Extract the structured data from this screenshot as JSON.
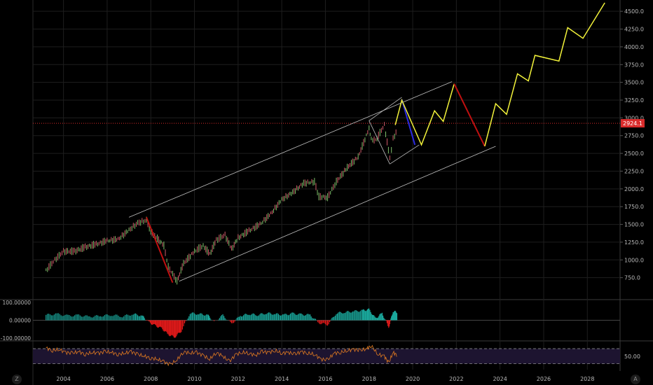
{
  "chart_data": {
    "type": "line",
    "price_axis_ticks": [
      750,
      1000,
      1250,
      1500,
      1750,
      2000,
      2250,
      2500,
      2750,
      3000,
      3250,
      3500,
      3750,
      4000,
      4250,
      4500
    ],
    "price_tick_labels": [
      "750.0",
      "1000.0",
      "1250.0",
      "1500.0",
      "1750.0",
      "2000.0",
      "2250.0",
      "2500.0",
      "2750.0",
      "3000.0",
      "3250.0",
      "3500.0",
      "3750.0",
      "4000.0",
      "4250.0",
      "4500.0"
    ],
    "ylim": [
      520,
      4620
    ],
    "xlim": [
      2002.6,
      2029.5
    ],
    "time_axis_ticks": [
      "2004",
      "2006",
      "2008",
      "2010",
      "2012",
      "2014",
      "2016",
      "2018",
      "2020",
      "2022",
      "2024",
      "2026",
      "2028"
    ],
    "current_price": 2924.1,
    "current_price_label": "2924.1",
    "price_series": {
      "x": [
        2003.2,
        2003.6,
        2004.0,
        2004.5,
        2005.0,
        2005.5,
        2006.0,
        2006.5,
        2007.0,
        2007.4,
        2007.8,
        2008.0,
        2008.3,
        2008.6,
        2008.8,
        2009.2,
        2009.5,
        2010.0,
        2010.4,
        2010.7,
        2011.0,
        2011.4,
        2011.7,
        2012.0,
        2012.5,
        2013.0,
        2013.5,
        2014.0,
        2014.5,
        2015.0,
        2015.5,
        2015.7,
        2016.1,
        2016.5,
        2017.0,
        2017.5,
        2018.0,
        2018.1,
        2018.3,
        2018.7,
        2018.95,
        2019.1,
        2019.3
      ],
      "y": [
        850,
        1000,
        1120,
        1120,
        1180,
        1220,
        1270,
        1290,
        1420,
        1520,
        1560,
        1400,
        1300,
        1200,
        900,
        700,
        950,
        1120,
        1200,
        1080,
        1280,
        1350,
        1150,
        1310,
        1410,
        1500,
        1650,
        1850,
        1950,
        2080,
        2100,
        1890,
        1880,
        2100,
        2300,
        2450,
        2850,
        2700,
        2680,
        2900,
        2420,
        2700,
        2850
      ]
    },
    "histogram_panel": {
      "labels": [
        "100.00000",
        "0.00000",
        "-100.00000"
      ],
      "ylim": [
        -100,
        100
      ],
      "x": [
        2003.2,
        2003.7,
        2004.2,
        2004.7,
        2005.2,
        2005.7,
        2006.2,
        2006.7,
        2007.2,
        2007.6,
        2007.9,
        2008.2,
        2008.5,
        2008.8,
        2009.1,
        2009.4,
        2009.8,
        2010.2,
        2010.6,
        2010.9,
        2011.3,
        2011.7,
        2012.1,
        2012.5,
        2012.9,
        2013.3,
        2013.7,
        2014.1,
        2014.5,
        2014.9,
        2015.3,
        2015.7,
        2016.1,
        2016.5,
        2016.9,
        2017.3,
        2017.7,
        2018.0,
        2018.3,
        2018.6,
        2018.9,
        2019.1,
        2019.3
      ],
      "values": [
        30,
        35,
        25,
        28,
        20,
        25,
        30,
        22,
        35,
        25,
        -10,
        -30,
        -45,
        -80,
        -95,
        -60,
        40,
        35,
        30,
        -10,
        28,
        -20,
        25,
        35,
        30,
        40,
        35,
        30,
        38,
        32,
        30,
        -15,
        -25,
        40,
        45,
        50,
        55,
        60,
        10,
        40,
        -40,
        50,
        45
      ]
    },
    "oscillator_panel": {
      "labels": [
        "50.00"
      ],
      "reference_value": 50,
      "upper_band": 70,
      "lower_band": 30,
      "ylim": [
        20,
        85
      ],
      "x": [
        2003.2,
        2003.5,
        2003.8,
        2004.1,
        2004.4,
        2004.7,
        2005.0,
        2005.3,
        2005.6,
        2005.9,
        2006.2,
        2006.5,
        2006.8,
        2007.1,
        2007.4,
        2007.7,
        2008.0,
        2008.3,
        2008.6,
        2008.9,
        2009.2,
        2009.5,
        2009.8,
        2010.1,
        2010.4,
        2010.7,
        2011.0,
        2011.3,
        2011.6,
        2011.9,
        2012.2,
        2012.5,
        2012.8,
        2013.1,
        2013.4,
        2013.7,
        2014.0,
        2014.3,
        2014.6,
        2014.9,
        2015.2,
        2015.5,
        2015.8,
        2016.1,
        2016.4,
        2016.7,
        2017.0,
        2017.3,
        2017.6,
        2017.9,
        2018.1,
        2018.4,
        2018.7,
        2018.9,
        2019.1,
        2019.3
      ],
      "values": [
        72,
        65,
        68,
        60,
        58,
        62,
        55,
        60,
        58,
        62,
        60,
        55,
        58,
        62,
        55,
        50,
        45,
        42,
        35,
        28,
        40,
        62,
        58,
        60,
        52,
        42,
        60,
        50,
        36,
        55,
        60,
        58,
        52,
        62,
        60,
        65,
        58,
        60,
        55,
        62,
        58,
        55,
        42,
        40,
        58,
        60,
        65,
        68,
        65,
        70,
        78,
        55,
        50,
        32,
        60,
        52
      ]
    },
    "drawings": {
      "channel_upper": [
        [
          2007.0,
          1600
        ],
        [
          2021.8,
          3510
        ]
      ],
      "channel_lower": [
        [
          2009.3,
          700
        ],
        [
          2023.8,
          2600
        ]
      ],
      "crash_2008": [
        [
          2007.8,
          1600
        ],
        [
          2009.0,
          680
        ]
      ],
      "inner_channel_upper": [
        [
          2018.0,
          2960
        ],
        [
          2019.5,
          3290
        ]
      ],
      "inner_channel_lower": [
        [
          2018.95,
          2350
        ],
        [
          2020.3,
          2620
        ]
      ],
      "blue_leg": [
        [
          2019.5,
          3260
        ],
        [
          2020.1,
          2620
        ]
      ],
      "yellow_projection": [
        [
          2019.2,
          2900
        ],
        [
          2019.5,
          3250
        ],
        [
          2020.4,
          2620
        ],
        [
          2021.0,
          3100
        ],
        [
          2021.4,
          2950
        ],
        [
          2021.9,
          3480
        ]
      ],
      "red_projection": [
        [
          2021.9,
          3480
        ],
        [
          2023.3,
          2600
        ]
      ],
      "yellow_projection_2": [
        [
          2023.3,
          2600
        ],
        [
          2023.8,
          3200
        ],
        [
          2024.3,
          3050
        ],
        [
          2024.8,
          3620
        ],
        [
          2025.3,
          3520
        ],
        [
          2025.6,
          3880
        ],
        [
          2026.7,
          3800
        ],
        [
          2027.1,
          4270
        ],
        [
          2027.8,
          4120
        ],
        [
          2028.8,
          4620
        ]
      ]
    }
  },
  "colors": {
    "background": "#000000",
    "grid": "#1e1e1e",
    "axis_text": "#b8b8b8",
    "price_line": "#c8c8c8",
    "candle_up": "#7fbf6a",
    "candle_down": "#d15a6a",
    "channel": "#c0c0c0",
    "yellow": "#f2f23a",
    "red": "#c01010",
    "blue": "#2a2ae0",
    "current_price": "#d92b2b",
    "hist_pos": "#1aa89c",
    "hist_neg": "#e01a1a",
    "oscillator": "#e07a20",
    "oscillator_band": "#1d1430"
  },
  "controls": {
    "timezone_button": "Z",
    "auto_scale_button": "A"
  }
}
